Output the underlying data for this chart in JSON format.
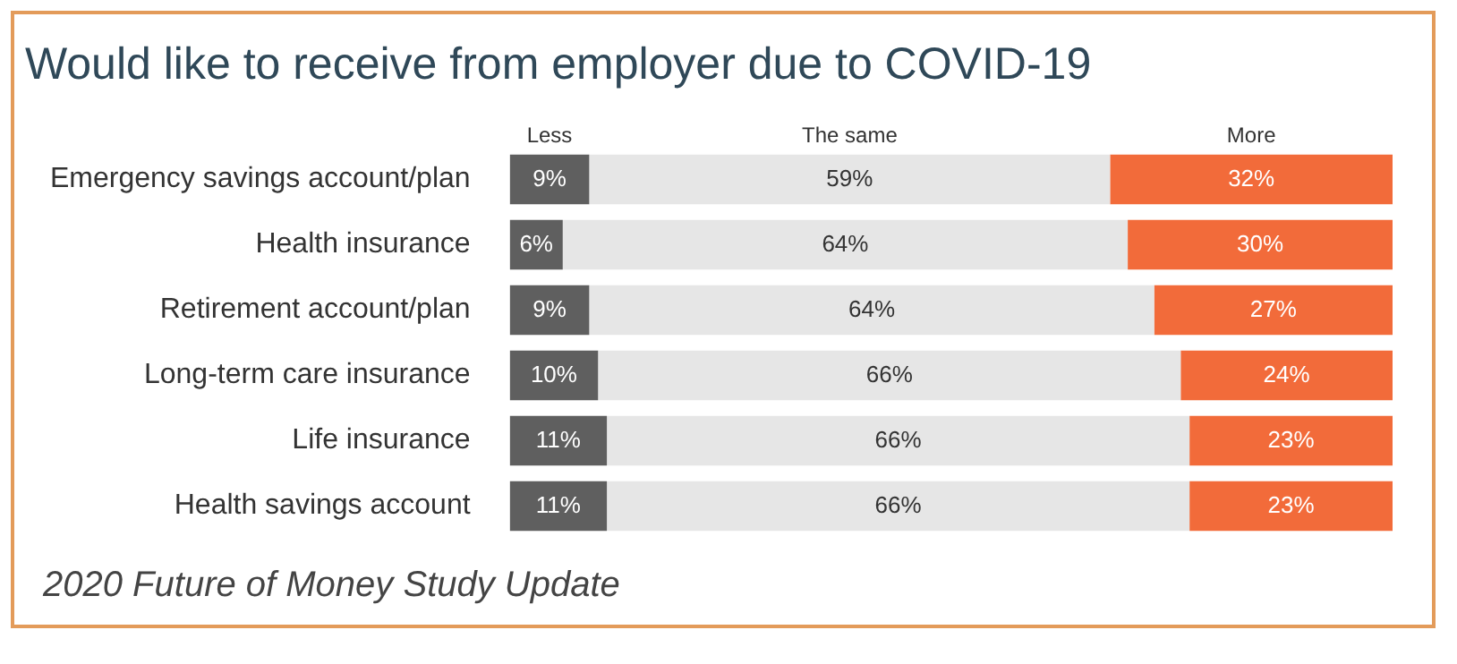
{
  "chart_data": {
    "type": "bar",
    "orientation": "horizontal",
    "stacked": true,
    "title": "Would like to receive from employer due to COVID-19",
    "categories": [
      "Emergency savings account/plan",
      "Health insurance",
      "Retirement account/plan",
      "Long-term care insurance",
      "Life insurance",
      "Health savings account"
    ],
    "series": [
      {
        "name": "Less",
        "color": "#5f5f5f",
        "values": [
          9,
          6,
          9,
          10,
          11,
          11
        ],
        "value_labels": [
          "9%",
          "6%",
          "9%",
          "10%",
          "11%",
          "11%"
        ]
      },
      {
        "name": "The same",
        "color": "#e6e6e6",
        "values": [
          59,
          64,
          64,
          66,
          66,
          66
        ],
        "value_labels": [
          "59%",
          "64%",
          "64%",
          "66%",
          "66%",
          "66%"
        ]
      },
      {
        "name": "More",
        "color": "#f26b3a",
        "values": [
          32,
          30,
          27,
          24,
          23,
          23
        ],
        "value_labels": [
          "32%",
          "30%",
          "27%",
          "24%",
          "23%",
          "23%"
        ]
      }
    ],
    "annotations": [
      "2020 Future of Money Study Update"
    ]
  }
}
